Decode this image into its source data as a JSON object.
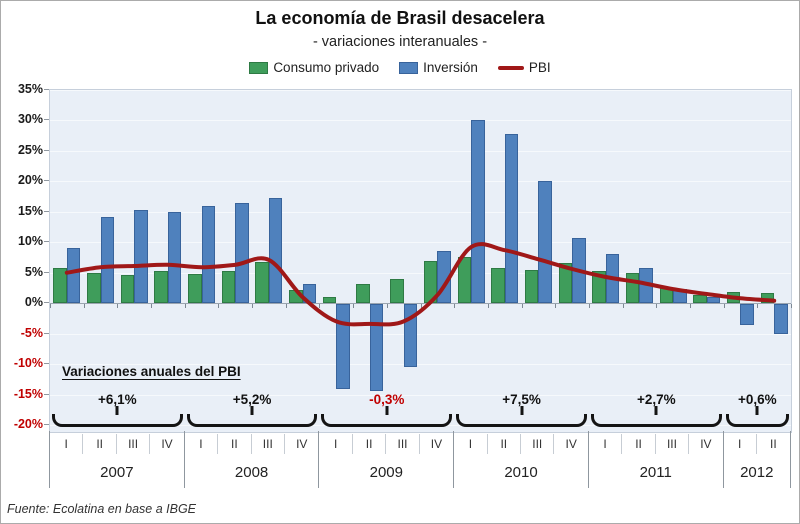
{
  "title": "La economía de Brasil desacelera",
  "subtitle": "- variaciones interanuales -",
  "source": "Fuente: Ecolatina en base a IBGE",
  "annotation_title": "Variaciones anuales del PBI",
  "colors": {
    "consumo_fill": "#3f9d5b",
    "consumo_border": "#2e7a44",
    "inversion_fill": "#4f81bd",
    "inversion_border": "#38639b",
    "pbi_line": "#a01818",
    "negative_text": "#c00000",
    "positive_text": "#1a1a1a",
    "plot_bg": "#e9eff7",
    "gridline": "#f6f9fc",
    "zero_line": "#9ba5b0",
    "bracket": "#141414"
  },
  "chart_data": {
    "type": "bar",
    "title": "La economía de Brasil desacelera",
    "subtitle": "- variaciones interanuales -",
    "xlabel": "",
    "ylabel": "",
    "ylim": [
      -20,
      35
    ],
    "ytick_step": 5,
    "grid": true,
    "legend_position": "top",
    "categories": [
      "2007-I",
      "2007-II",
      "2007-III",
      "2007-IV",
      "2008-I",
      "2008-II",
      "2008-III",
      "2008-IV",
      "2009-I",
      "2009-II",
      "2009-III",
      "2009-IV",
      "2010-I",
      "2010-II",
      "2010-III",
      "2010-IV",
      "2011-I",
      "2011-II",
      "2011-III",
      "2011-IV",
      "2012-I",
      "2012-II"
    ],
    "series": [
      {
        "name": "Consumo privado",
        "type": "bar",
        "color": "#3f9d5b",
        "values": [
          5.7,
          5.0,
          4.7,
          5.3,
          4.8,
          5.3,
          6.8,
          2.1,
          1.0,
          3.2,
          4.0,
          6.9,
          7.5,
          5.8,
          5.4,
          6.6,
          5.2,
          4.9,
          2.7,
          1.3,
          1.8,
          1.7
        ]
      },
      {
        "name": "Inversión",
        "type": "bar",
        "color": "#4f81bd",
        "values": [
          9.1,
          14.1,
          15.3,
          15.0,
          16.0,
          16.4,
          17.3,
          3.1,
          -13.9,
          -14.3,
          -10.3,
          8.6,
          30.0,
          27.7,
          20.1,
          10.7,
          8.1,
          5.8,
          2.3,
          1.0,
          -3.5,
          -4.9
        ]
      },
      {
        "name": "PBI",
        "type": "line",
        "color": "#a01818",
        "values": [
          5.0,
          5.9,
          6.1,
          6.3,
          5.9,
          6.3,
          7.1,
          1.0,
          -3.0,
          -3.4,
          -3.0,
          1.3,
          9.2,
          8.7,
          7.2,
          5.6,
          4.3,
          3.4,
          2.3,
          1.5,
          0.8,
          0.4
        ]
      }
    ],
    "yticks": [
      {
        "label": "35%",
        "value": 35
      },
      {
        "label": "30%",
        "value": 30
      },
      {
        "label": "25%",
        "value": 25
      },
      {
        "label": "20%",
        "value": 20
      },
      {
        "label": "15%",
        "value": 15
      },
      {
        "label": "10%",
        "value": 10
      },
      {
        "label": "5%",
        "value": 5
      },
      {
        "label": "0%",
        "value": 0
      },
      {
        "label": "-5%",
        "value": -5
      },
      {
        "label": "-10%",
        "value": -10
      },
      {
        "label": "-15%",
        "value": -15
      },
      {
        "label": "-20%",
        "value": -20
      }
    ],
    "years": [
      {
        "label": "2007",
        "annual_pbi": "+6,1%",
        "red": false,
        "quarters": [
          "I",
          "II",
          "III",
          "IV"
        ]
      },
      {
        "label": "2008",
        "annual_pbi": "+5,2%",
        "red": false,
        "quarters": [
          "I",
          "II",
          "III",
          "IV"
        ]
      },
      {
        "label": "2009",
        "annual_pbi": "-0,3%",
        "red": true,
        "quarters": [
          "I",
          "II",
          "III",
          "IV"
        ]
      },
      {
        "label": "2010",
        "annual_pbi": "+7,5%",
        "red": false,
        "quarters": [
          "I",
          "II",
          "III",
          "IV"
        ]
      },
      {
        "label": "2011",
        "annual_pbi": "+2,7%",
        "red": false,
        "quarters": [
          "I",
          "II",
          "III",
          "IV"
        ]
      },
      {
        "label": "2012",
        "annual_pbi": "+0,6%",
        "red": false,
        "quarters": [
          "I",
          "II"
        ]
      }
    ],
    "annotation_title": "Variaciones anuales del PBI",
    "source": "Fuente: Ecolatina en base a IBGE"
  }
}
